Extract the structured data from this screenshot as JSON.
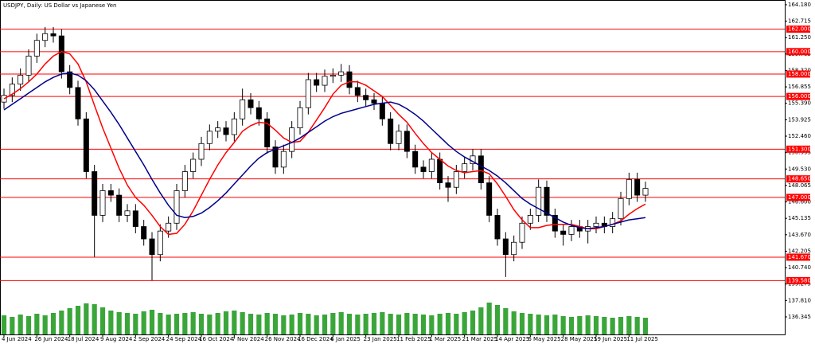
{
  "chart_data": {
    "type": "candlestick",
    "title": "USDJPY, Daily:  US Dollar vs Japanese Yen",
    "categories": [
      "4 Jun 2024",
      null,
      null,
      null,
      "26 Jun 2024",
      null,
      null,
      null,
      "18 Jul 2024",
      null,
      null,
      null,
      "9 Aug 2024",
      null,
      null,
      null,
      "2 Sep 2024",
      null,
      null,
      null,
      "24 Sep 2024",
      null,
      null,
      null,
      "16 Oct 2024",
      null,
      null,
      null,
      "7 Nov 2024",
      null,
      null,
      null,
      "26 Nov 2024",
      null,
      null,
      null,
      "16 Dec 2024",
      null,
      null,
      null,
      "6 Jan 2025",
      null,
      null,
      null,
      "23 Jan 2025",
      null,
      null,
      null,
      "11 Feb 2025",
      null,
      null,
      null,
      "1 Mar 2025",
      null,
      null,
      null,
      "21 Mar 2025",
      null,
      null,
      null,
      "14 Apr 2025",
      null,
      null,
      null,
      "6 May 2025",
      null,
      null,
      null,
      "28 May 2025",
      null,
      null,
      null,
      "19 Jun 2025",
      null,
      null,
      null,
      "11 Jul 2025",
      null,
      null
    ],
    "open": [
      155.5,
      156.1,
      157.1,
      157.9,
      159.6,
      161.0,
      161.6,
      161.4,
      158.2,
      156.8,
      154.0,
      149.3,
      145.4,
      147.6,
      147.2,
      145.4,
      145.8,
      144.4,
      143.3,
      141.9,
      144.0,
      144.7,
      147.6,
      149.3,
      150.4,
      151.8,
      152.9,
      153.2,
      152.6,
      154.0,
      155.7,
      155.0,
      154.0,
      151.5,
      149.7,
      151.1,
      153.2,
      155.0,
      157.5,
      157.0,
      157.8,
      157.9,
      158.2,
      156.8,
      156.1,
      155.7,
      155.4,
      154.0,
      151.8,
      152.9,
      151.1,
      149.7,
      149.3,
      150.4,
      148.3,
      147.9,
      149.3,
      150.0,
      150.7,
      148.3,
      145.4,
      143.3,
      141.9,
      143.0,
      144.7,
      145.4,
      147.9,
      145.4,
      144.0,
      143.7,
      144.4,
      144.0,
      144.4,
      144.7,
      144.4,
      145.1,
      146.9,
      148.6,
      147.2
    ],
    "high": [
      156.7,
      157.7,
      158.5,
      160.2,
      161.6,
      162.2,
      162.2,
      162.0,
      158.8,
      157.4,
      154.6,
      149.9,
      148.2,
      148.2,
      147.8,
      146.4,
      146.4,
      145.0,
      143.9,
      144.6,
      145.3,
      148.2,
      149.9,
      151.0,
      152.4,
      153.5,
      153.8,
      153.8,
      154.6,
      156.7,
      156.3,
      155.6,
      154.6,
      152.1,
      151.7,
      153.8,
      155.6,
      158.1,
      158.1,
      158.4,
      158.5,
      158.9,
      158.8,
      157.4,
      156.7,
      156.3,
      156.0,
      154.6,
      153.5,
      153.5,
      151.7,
      150.3,
      151.0,
      151.0,
      148.9,
      149.9,
      150.6,
      151.3,
      151.3,
      148.9,
      146.0,
      143.9,
      143.6,
      145.3,
      146.0,
      148.6,
      148.5,
      146.0,
      144.6,
      145.0,
      145.0,
      145.0,
      145.3,
      145.3,
      145.7,
      147.5,
      149.2,
      149.2,
      148.4
    ],
    "low": [
      154.9,
      155.5,
      156.5,
      157.3,
      159.0,
      160.4,
      160.8,
      157.6,
      156.2,
      153.4,
      148.7,
      141.7,
      144.8,
      146.6,
      144.8,
      144.8,
      143.8,
      142.7,
      139.6,
      141.3,
      143.4,
      144.1,
      147.0,
      148.7,
      149.8,
      151.2,
      152.3,
      152.0,
      152.0,
      153.4,
      154.4,
      153.4,
      150.9,
      149.1,
      149.1,
      150.5,
      152.6,
      154.4,
      156.4,
      156.4,
      157.2,
      157.3,
      156.2,
      155.5,
      155.1,
      154.8,
      153.4,
      151.2,
      151.2,
      150.5,
      149.1,
      148.7,
      148.7,
      147.7,
      146.6,
      147.3,
      148.7,
      149.4,
      147.7,
      144.8,
      142.7,
      139.9,
      141.3,
      142.4,
      144.1,
      144.8,
      144.8,
      143.4,
      142.7,
      143.1,
      143.4,
      142.9,
      143.8,
      143.8,
      143.8,
      144.5,
      146.3,
      146.6,
      146.6
    ],
    "close": [
      156.1,
      157.1,
      157.9,
      159.6,
      161.0,
      161.6,
      161.4,
      158.2,
      156.8,
      154.0,
      149.3,
      145.4,
      147.6,
      147.2,
      145.4,
      145.8,
      144.4,
      143.3,
      141.9,
      144.0,
      144.7,
      147.6,
      149.3,
      150.4,
      151.8,
      152.9,
      153.2,
      152.6,
      154.0,
      155.7,
      155.0,
      154.0,
      151.5,
      149.7,
      151.1,
      153.2,
      155.0,
      157.5,
      157.0,
      157.8,
      157.9,
      158.2,
      156.8,
      156.1,
      155.7,
      155.4,
      154.0,
      151.8,
      152.9,
      151.1,
      149.7,
      149.3,
      150.4,
      148.3,
      147.9,
      149.3,
      150.0,
      150.7,
      148.3,
      145.4,
      143.3,
      141.9,
      143.0,
      144.7,
      145.4,
      147.9,
      145.4,
      144.0,
      143.7,
      144.4,
      144.0,
      144.4,
      144.7,
      144.4,
      145.1,
      146.9,
      148.6,
      147.2,
      147.8
    ],
    "volume": [
      24,
      22,
      25,
      23,
      26,
      24,
      27,
      30,
      33,
      36,
      39,
      38,
      34,
      30,
      28,
      27,
      26,
      29,
      31,
      27,
      25,
      26,
      27,
      28,
      26,
      25,
      27,
      29,
      30,
      28,
      26,
      25,
      27,
      26,
      24,
      25,
      27,
      26,
      24,
      25,
      27,
      28,
      26,
      25,
      26,
      27,
      28,
      26,
      25,
      27,
      26,
      25,
      24,
      26,
      27,
      26,
      28,
      30,
      34,
      40,
      37,
      33,
      29,
      27,
      26,
      25,
      24,
      25,
      23,
      22,
      23,
      24,
      23,
      22,
      21,
      22,
      23,
      22,
      21
    ],
    "vlim": [
      0,
      100
    ],
    "up_color": "#ffffff",
    "down_color": "#000000",
    "volume_color": "#3aa63a",
    "moving_averages": [
      {
        "color": "#ff0000",
        "values": [
          155.8,
          156.2,
          156.7,
          157.3,
          158.0,
          158.9,
          159.6,
          160.0,
          159.8,
          158.9,
          157.3,
          155.2,
          153.2,
          151.4,
          149.6,
          148.1,
          147.0,
          146.3,
          145.4,
          144.4,
          143.7,
          143.8,
          144.6,
          145.8,
          147.2,
          148.6,
          149.9,
          151.0,
          151.9,
          152.9,
          153.4,
          153.7,
          153.6,
          153.0,
          152.3,
          151.9,
          152.0,
          152.8,
          153.9,
          155.0,
          156.2,
          157.0,
          157.3,
          157.3,
          157.0,
          156.5,
          156.0,
          155.2,
          154.4,
          153.7,
          152.7,
          151.8,
          151.0,
          150.4,
          149.8,
          149.4,
          149.2,
          149.3,
          149.4,
          149.1,
          148.2,
          147.1,
          145.9,
          145.0,
          144.3,
          144.3,
          144.5,
          144.6,
          144.6,
          144.6,
          144.4,
          144.2,
          144.2,
          144.4,
          144.6,
          144.9,
          145.5,
          146.0,
          146.4
        ]
      },
      {
        "color": "#00008b",
        "values": [
          154.8,
          155.3,
          155.8,
          156.3,
          156.8,
          157.3,
          157.7,
          158.0,
          158.1,
          157.9,
          157.4,
          156.6,
          155.6,
          154.6,
          153.5,
          152.3,
          151.1,
          149.9,
          148.6,
          147.4,
          146.3,
          145.4,
          145.2,
          145.3,
          145.6,
          146.1,
          146.7,
          147.4,
          148.2,
          149.0,
          149.8,
          150.5,
          151.0,
          151.3,
          151.6,
          151.9,
          152.3,
          152.8,
          153.3,
          153.8,
          154.2,
          154.5,
          154.7,
          154.9,
          155.1,
          155.3,
          155.4,
          155.5,
          155.3,
          154.9,
          154.4,
          153.8,
          153.1,
          152.4,
          151.7,
          151.1,
          150.6,
          150.2,
          149.8,
          149.4,
          148.9,
          148.3,
          147.6,
          146.9,
          146.4,
          146.0,
          145.6,
          145.2,
          144.8,
          144.5,
          144.3,
          144.2,
          144.3,
          144.4,
          144.6,
          144.8,
          145.0,
          145.1,
          145.2
        ]
      }
    ],
    "levels": [
      {
        "value": 162,
        "label": "162.000"
      },
      {
        "value": 160,
        "label": "160.000"
      },
      {
        "value": 158,
        "label": "158.000"
      },
      {
        "value": 156,
        "label": "156.000"
      },
      {
        "value": 151.3,
        "label": "151.300"
      },
      {
        "value": 148.65,
        "label": "148.650"
      },
      {
        "value": 147,
        "label": "147.000"
      },
      {
        "value": 141.67,
        "label": "141.670"
      },
      {
        "value": 139.58,
        "label": "139.580"
      }
    ],
    "level_color": "#ff0000",
    "ylim": [
      134.78,
      164.46
    ],
    "yticks": [
      {
        "value": 164.18,
        "label": "164.180"
      },
      {
        "value": 162.715,
        "label": "162.715"
      },
      {
        "value": 161.25,
        "label": "161.250"
      },
      {
        "value": 159.785,
        "label": "159.785"
      },
      {
        "value": 158.32,
        "label": "158.320"
      },
      {
        "value": 156.855,
        "label": "156.855"
      },
      {
        "value": 155.39,
        "label": "155.390"
      },
      {
        "value": 153.925,
        "label": "153.925"
      },
      {
        "value": 152.46,
        "label": "152.460"
      },
      {
        "value": 150.995,
        "label": "150.995"
      },
      {
        "value": 149.53,
        "label": "149.530"
      },
      {
        "value": 148.065,
        "label": "148.065"
      },
      {
        "value": 146.6,
        "label": "146.600"
      },
      {
        "value": 145.135,
        "label": "145.135"
      },
      {
        "value": 143.67,
        "label": "143.670"
      },
      {
        "value": 142.205,
        "label": "142.205"
      },
      {
        "value": 140.74,
        "label": "140.740"
      },
      {
        "value": 139.275,
        "label": "139.275"
      },
      {
        "value": 137.81,
        "label": "137.810"
      },
      {
        "value": 136.345,
        "label": "136.345"
      }
    ],
    "grid": false
  }
}
